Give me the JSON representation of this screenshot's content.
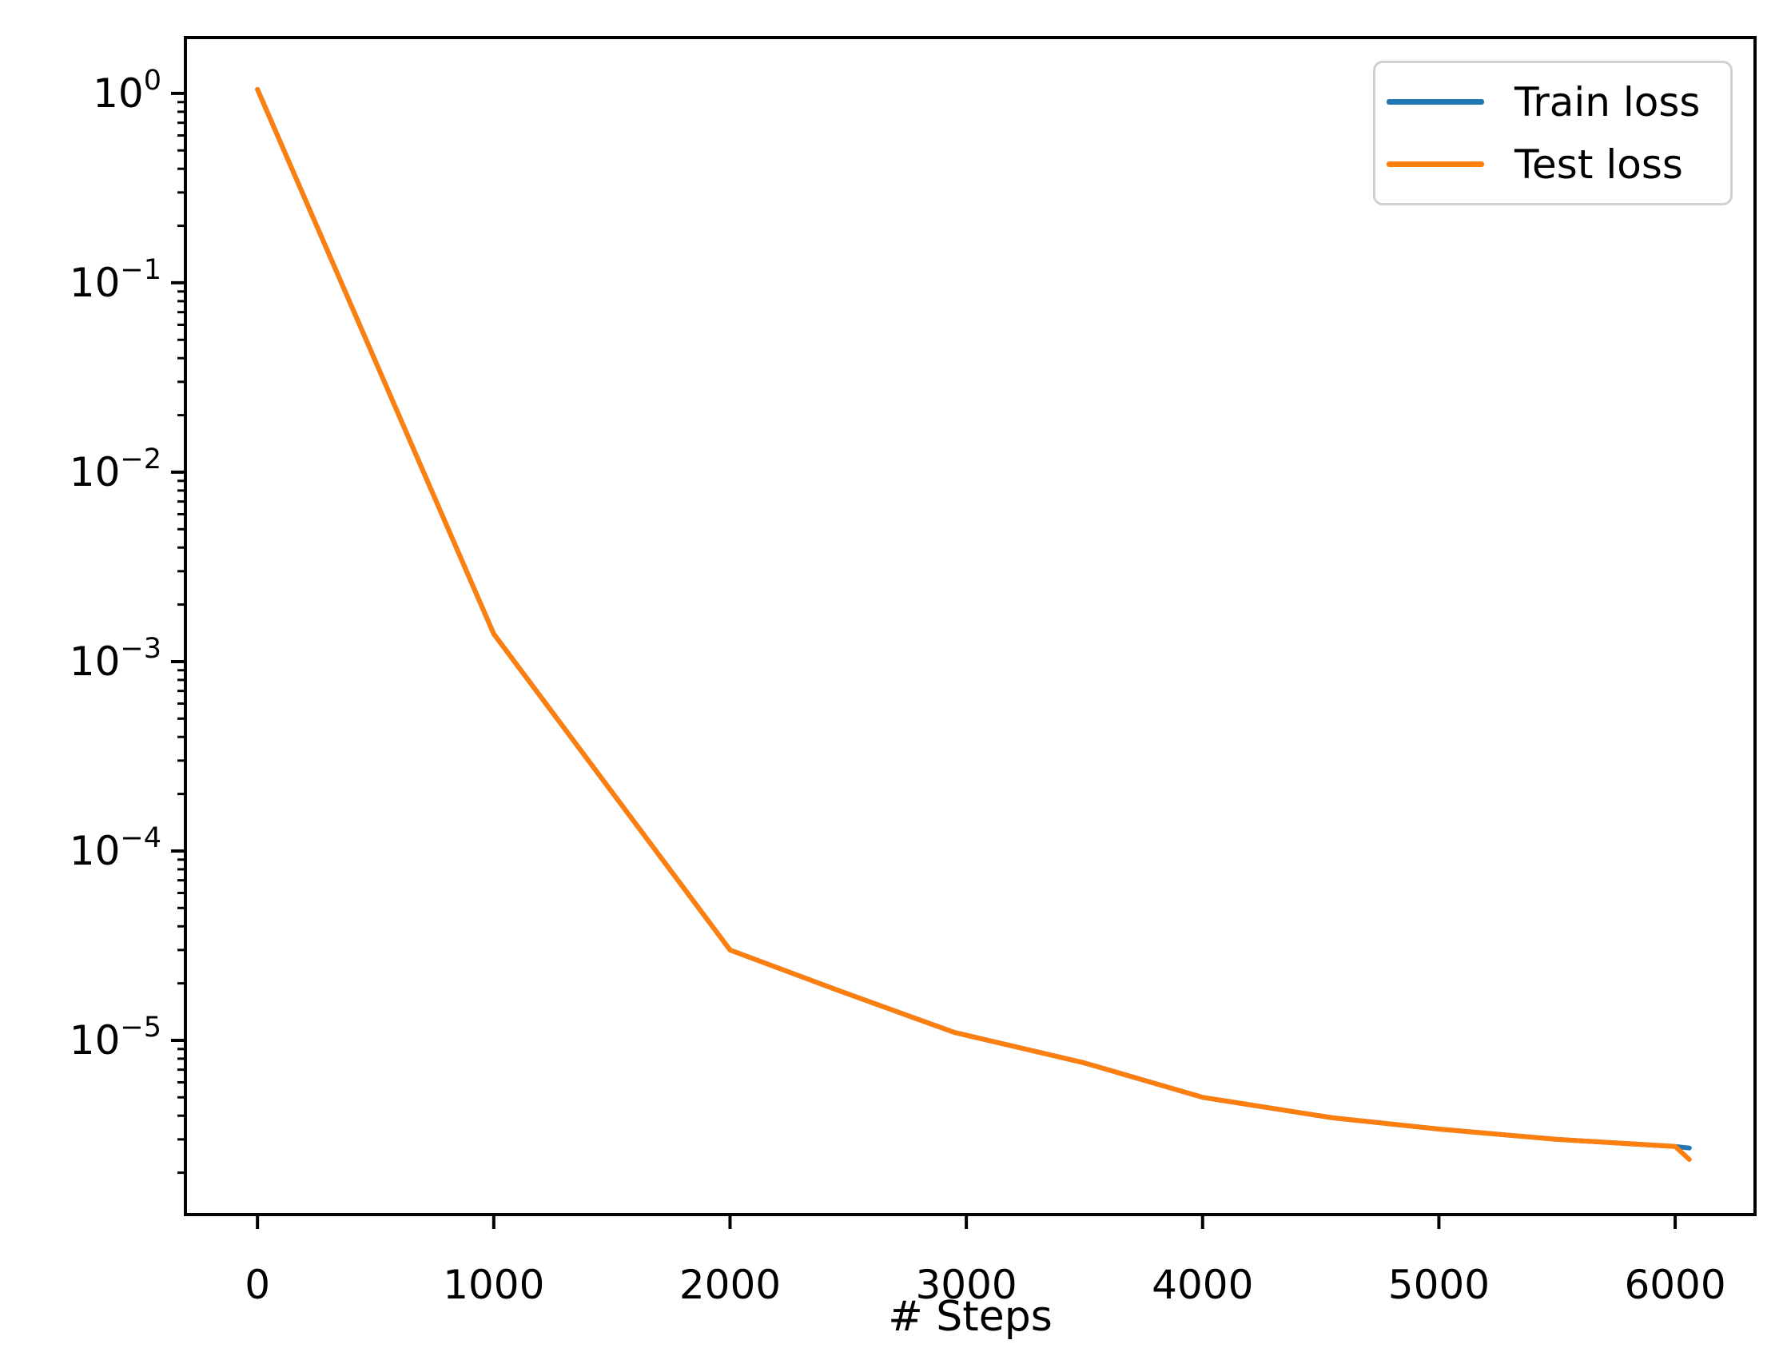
{
  "figure": {
    "background_color": "#ffffff",
    "text_color": "#000000",
    "spine_color": "#000000",
    "legend_border_color": "#d0d0d0"
  },
  "chart_data": {
    "type": "line",
    "title": "",
    "xlabel": "# Steps",
    "ylabel": "",
    "xscale": "linear",
    "yscale": "log",
    "grid": false,
    "legend_position": "upper right",
    "xlim": [
      -305,
      6338
    ],
    "ylim_exp": [
      -5.92,
      0.295
    ],
    "xticks": [
      0,
      1000,
      2000,
      3000,
      4000,
      5000,
      6000
    ],
    "ytick_exponents": [
      0,
      -1,
      -2,
      -3,
      -4,
      -5
    ],
    "series": [
      {
        "name": "Train loss",
        "color": "#1f77b4",
        "x": [
          0,
          1000,
          2000,
          2450,
          2950,
          3500,
          4000,
          4550,
          5000,
          5500,
          6000,
          6060
        ],
        "y": [
          1.05,
          0.0014,
          3e-05,
          1.85e-05,
          1.1e-05,
          7.6e-06,
          5e-06,
          3.9e-06,
          3.4e-06,
          3e-06,
          2.75e-06,
          2.7e-06
        ]
      },
      {
        "name": "Test loss",
        "color": "#ff7f0e",
        "x": [
          0,
          1000,
          2000,
          2450,
          2950,
          3500,
          4000,
          4550,
          5000,
          5500,
          6000,
          6060
        ],
        "y": [
          1.05,
          0.0014,
          3e-05,
          1.85e-05,
          1.1e-05,
          7.6e-06,
          5e-06,
          3.9e-06,
          3.4e-06,
          3e-06,
          2.75e-06,
          2.35e-06
        ]
      }
    ]
  }
}
